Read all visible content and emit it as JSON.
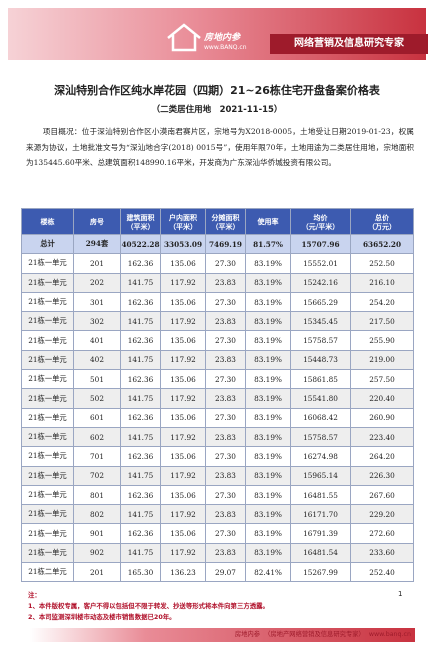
{
  "header": {
    "logo": "房地内参",
    "url": "www.BANQ.cn",
    "slogan": "网络营销及信息研究专家"
  },
  "title": "深汕特别合作区纯水岸花园（四期）21~26栋住宅开盘备案价格表",
  "subtitle": "（二类居住用地　2021-11-15）",
  "overview": "项目概况：位于深汕特别合作区小漠南君赛片区，宗地号为X2018-0005，土地受让日期2019-01-23，权属来源为协议，土地批准文号为“深汕地合字(2018) 0015号”，使用年限70年，土地用途为二类居住用地，宗地面积为135445.60平米、总建筑面积148990.16平米，开发商为广东深汕华侨城投资有限公司。",
  "table": {
    "headers": [
      [
        "楼栋"
      ],
      [
        "房号"
      ],
      [
        "建筑面积",
        "（平米）"
      ],
      [
        "户内面积",
        "（平米）"
      ],
      [
        "分摊面积",
        "（平米）"
      ],
      [
        "使用率"
      ],
      [
        "均价",
        "（元/平米）"
      ],
      [
        "总价",
        "（万元）"
      ]
    ],
    "total": [
      "总计",
      "294套",
      "40522.28",
      "33053.09",
      "7469.19",
      "81.57%",
      "15707.96",
      "63652.20"
    ],
    "rows": [
      [
        "21栋一单元",
        "201",
        "162.36",
        "135.06",
        "27.30",
        "83.19%",
        "15552.01",
        "252.50"
      ],
      [
        "21栋一单元",
        "202",
        "141.75",
        "117.92",
        "23.83",
        "83.19%",
        "15242.16",
        "216.10"
      ],
      [
        "21栋一单元",
        "301",
        "162.36",
        "135.06",
        "27.30",
        "83.19%",
        "15665.29",
        "254.20"
      ],
      [
        "21栋一单元",
        "302",
        "141.75",
        "117.92",
        "23.83",
        "83.19%",
        "15345.45",
        "217.50"
      ],
      [
        "21栋一单元",
        "401",
        "162.36",
        "135.06",
        "27.30",
        "83.19%",
        "15758.57",
        "255.90"
      ],
      [
        "21栋一单元",
        "402",
        "141.75",
        "117.92",
        "23.83",
        "83.19%",
        "15448.73",
        "219.00"
      ],
      [
        "21栋一单元",
        "501",
        "162.36",
        "135.06",
        "27.30",
        "83.19%",
        "15861.85",
        "257.50"
      ],
      [
        "21栋一单元",
        "502",
        "141.75",
        "117.92",
        "23.83",
        "83.19%",
        "15541.80",
        "220.40"
      ],
      [
        "21栋一单元",
        "601",
        "162.36",
        "135.06",
        "27.30",
        "83.19%",
        "16068.42",
        "260.90"
      ],
      [
        "21栋一单元",
        "602",
        "141.75",
        "117.92",
        "23.83",
        "83.19%",
        "15758.57",
        "223.40"
      ],
      [
        "21栋一单元",
        "701",
        "162.36",
        "135.06",
        "27.30",
        "83.19%",
        "16274.98",
        "264.20"
      ],
      [
        "21栋一单元",
        "702",
        "141.75",
        "117.92",
        "23.83",
        "83.19%",
        "15965.14",
        "226.30"
      ],
      [
        "21栋一单元",
        "801",
        "162.36",
        "135.06",
        "27.30",
        "83.19%",
        "16481.55",
        "267.60"
      ],
      [
        "21栋一单元",
        "802",
        "141.75",
        "117.92",
        "23.83",
        "83.19%",
        "16171.70",
        "229.20"
      ],
      [
        "21栋一单元",
        "901",
        "162.36",
        "135.06",
        "27.30",
        "83.19%",
        "16791.39",
        "272.60"
      ],
      [
        "21栋一单元",
        "902",
        "141.75",
        "117.92",
        "23.83",
        "83.19%",
        "16481.54",
        "233.60"
      ],
      [
        "21栋二单元",
        "201",
        "165.30",
        "136.23",
        "29.07",
        "82.41%",
        "15267.99",
        "252.40"
      ]
    ]
  },
  "notes": {
    "label": "注：",
    "items": [
      "1、本件版权专属，客户不得以包括但不限于转发、抄送等形式将本件向第三方透露。",
      "2、本司监测深圳楼市动态及楼市销售数据已20年。"
    ]
  },
  "page_number": "1",
  "footer": {
    "brand": "房地内参",
    "text": "（房地产网络营销及信息研究专家）",
    "url": "www.banq.cn"
  }
}
